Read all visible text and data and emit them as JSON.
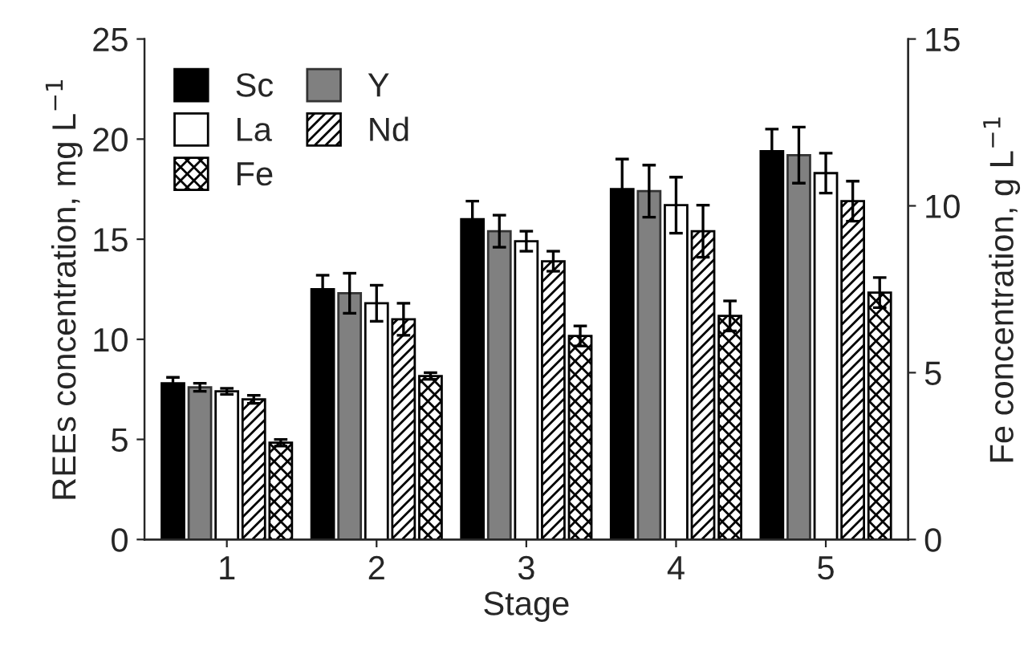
{
  "chart_data": {
    "type": "bar",
    "xlabel": "Stage",
    "ylabel": "REEs concentration, mg L$^{−1}$",
    "y2label": "Fe concentration, g L$^{−1}$",
    "categories": [
      "1",
      "2",
      "3",
      "4",
      "5"
    ],
    "series": [
      {
        "name": "Sc",
        "color": "#000000",
        "values": [
          7.8,
          12.5,
          16.0,
          17.5,
          19.4
        ],
        "errors": [
          0.3,
          0.7,
          0.9,
          1.5,
          1.1
        ]
      },
      {
        "name": "Y",
        "color": "#808080",
        "values": [
          7.6,
          12.3,
          15.4,
          17.4,
          19.2
        ],
        "errors": [
          0.2,
          1.0,
          0.8,
          1.3,
          1.4
        ]
      },
      {
        "name": "La",
        "color": "#ffffff",
        "values": [
          7.4,
          11.8,
          14.9,
          16.7,
          18.3
        ],
        "errors": [
          0.15,
          0.9,
          0.5,
          1.4,
          1.0
        ]
      },
      {
        "name": "Nd",
        "color": "#000000",
        "values": [
          7.0,
          11.0,
          13.9,
          15.4,
          16.9
        ],
        "errors": [
          0.2,
          0.8,
          0.5,
          1.3,
          1.0
        ]
      },
      {
        "name": "Fe",
        "color": "#000000",
        "axis": "y2",
        "values": [
          2.9,
          4.9,
          6.1,
          6.7,
          7.4
        ],
        "errors": [
          0.1,
          0.1,
          0.3,
          0.45,
          0.45
        ]
      }
    ],
    "ylim": [
      0,
      25
    ],
    "yticks": [
      0,
      5,
      10,
      15,
      20,
      25
    ],
    "y2lim": [
      0,
      15
    ],
    "y2ticks": [
      0,
      5,
      10,
      15
    ],
    "grid": false,
    "legend": "top left"
  }
}
